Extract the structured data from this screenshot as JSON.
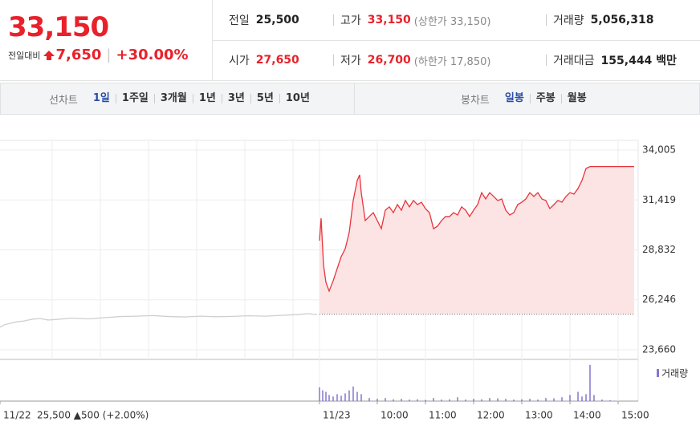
{
  "header": {
    "price": "33,150",
    "change_label": "전일대비",
    "change": "7,650",
    "change_rate": "+30.00%",
    "stats": [
      [
        {
          "label": "전일",
          "value": "25,500"
        },
        {
          "label": "고가",
          "value": "33,150",
          "extra": "(상한가 33,150)"
        },
        {
          "label": "거래량",
          "value": "5,056,318"
        }
      ],
      [
        {
          "label": "시가",
          "value": "27,650"
        },
        {
          "label": "저가",
          "value": "26,700",
          "extra": "(하한가 17,850)"
        },
        {
          "label": "거래대금",
          "value": "155,444 백만"
        }
      ]
    ]
  },
  "tabs": {
    "line_label": "선차트",
    "periods": [
      "1일",
      "1주일",
      "3개월",
      "1년",
      "3년",
      "5년",
      "10년"
    ],
    "candle_label": "봉차트",
    "candles": [
      "일봉",
      "주봉",
      "월봉"
    ]
  },
  "chart_data": {
    "type": "line",
    "xlim": [
      -410,
      385
    ],
    "ylim": [
      23160,
      34505
    ],
    "yticks": [
      {
        "value": 34005,
        "label": "34,005"
      },
      {
        "value": 31419,
        "label": "31,419"
      },
      {
        "value": 28832,
        "label": "28,832"
      },
      {
        "value": 26246,
        "label": "26,246"
      },
      {
        "value": 23660,
        "label": "23,660"
      }
    ],
    "xticks": [
      {
        "value": -410,
        "label": "11/22"
      },
      {
        "value": -12,
        "label": "11/23"
      },
      {
        "value": 60,
        "label": "10:00"
      },
      {
        "value": 120,
        "label": "11:00"
      },
      {
        "value": 180,
        "label": "12:00"
      },
      {
        "value": 240,
        "label": "13:00"
      },
      {
        "value": 300,
        "label": "14:00"
      },
      {
        "value": 360,
        "label": "15:00"
      }
    ],
    "prev_day_label": "25,500 ▲500 (+2.00%)",
    "base": 25500,
    "grid": true,
    "series": [
      {
        "color": "#cfcfcf",
        "x": [
          -410,
          -405,
          -400,
          -390,
          -380,
          -370,
          -360,
          -350,
          -340,
          -320,
          -300,
          -280,
          -260,
          -240,
          -220,
          -200,
          -180,
          -160,
          -140,
          -120,
          -100,
          -80,
          -60,
          -40,
          -25,
          -15
        ],
        "values": [
          24830,
          24950,
          25000,
          25100,
          25150,
          25240,
          25280,
          25200,
          25230,
          25300,
          25260,
          25320,
          25380,
          25400,
          25430,
          25380,
          25360,
          25400,
          25370,
          25390,
          25420,
          25400,
          25440,
          25480,
          25530,
          25470
        ]
      },
      {
        "color": "#e8343c",
        "fill": "#fde4e4",
        "x": [
          -12,
          -10,
          -7,
          -4,
          0,
          5,
          10,
          15,
          20,
          25,
          30,
          35,
          38,
          40,
          45,
          50,
          55,
          60,
          65,
          70,
          75,
          80,
          85,
          90,
          95,
          100,
          105,
          110,
          115,
          120,
          125,
          130,
          135,
          140,
          145,
          150,
          155,
          160,
          165,
          170,
          175,
          180,
          185,
          190,
          195,
          200,
          205,
          210,
          215,
          220,
          225,
          230,
          235,
          240,
          245,
          250,
          255,
          260,
          265,
          270,
          275,
          280,
          285,
          290,
          295,
          300,
          305,
          310,
          315,
          320,
          325,
          380
        ],
        "values": [
          29310,
          30470,
          28060,
          27150,
          26700,
          27230,
          27860,
          28480,
          28890,
          29730,
          31390,
          32430,
          32720,
          31800,
          30350,
          30560,
          30760,
          30350,
          29930,
          30890,
          31060,
          30760,
          31180,
          30890,
          31390,
          31060,
          31390,
          31180,
          31300,
          30970,
          30760,
          29930,
          30060,
          30350,
          30560,
          30560,
          30760,
          30640,
          31060,
          30890,
          30560,
          30890,
          31180,
          31800,
          31470,
          31800,
          31600,
          31390,
          31470,
          30890,
          30640,
          30760,
          31180,
          31300,
          31470,
          31800,
          31600,
          31800,
          31470,
          31390,
          30970,
          31180,
          31390,
          31300,
          31600,
          31800,
          31720,
          32010,
          32430,
          33050,
          33150,
          33150
        ]
      }
    ],
    "volume": {
      "name": "거래량",
      "color": "#8677cf",
      "ylim": [
        0,
        250000
      ],
      "x": [
        -12,
        -8,
        -4,
        0,
        5,
        10,
        15,
        20,
        25,
        30,
        35,
        40,
        50,
        60,
        70,
        80,
        90,
        100,
        110,
        120,
        130,
        140,
        150,
        160,
        170,
        180,
        190,
        200,
        210,
        220,
        230,
        240,
        250,
        260,
        270,
        280,
        290,
        300,
        310,
        315,
        320,
        325,
        330,
        340,
        350
      ],
      "values": [
        90000,
        70000,
        60000,
        40000,
        30000,
        45000,
        35000,
        50000,
        70000,
        95000,
        60000,
        45000,
        20000,
        15000,
        20000,
        12000,
        15000,
        10000,
        12000,
        8000,
        20000,
        10000,
        12000,
        25000,
        10000,
        15000,
        12000,
        20000,
        18000,
        15000,
        10000,
        12000,
        15000,
        10000,
        20000,
        18000,
        25000,
        40000,
        60000,
        30000,
        45000,
        235000,
        40000,
        10000,
        5000
      ]
    }
  }
}
